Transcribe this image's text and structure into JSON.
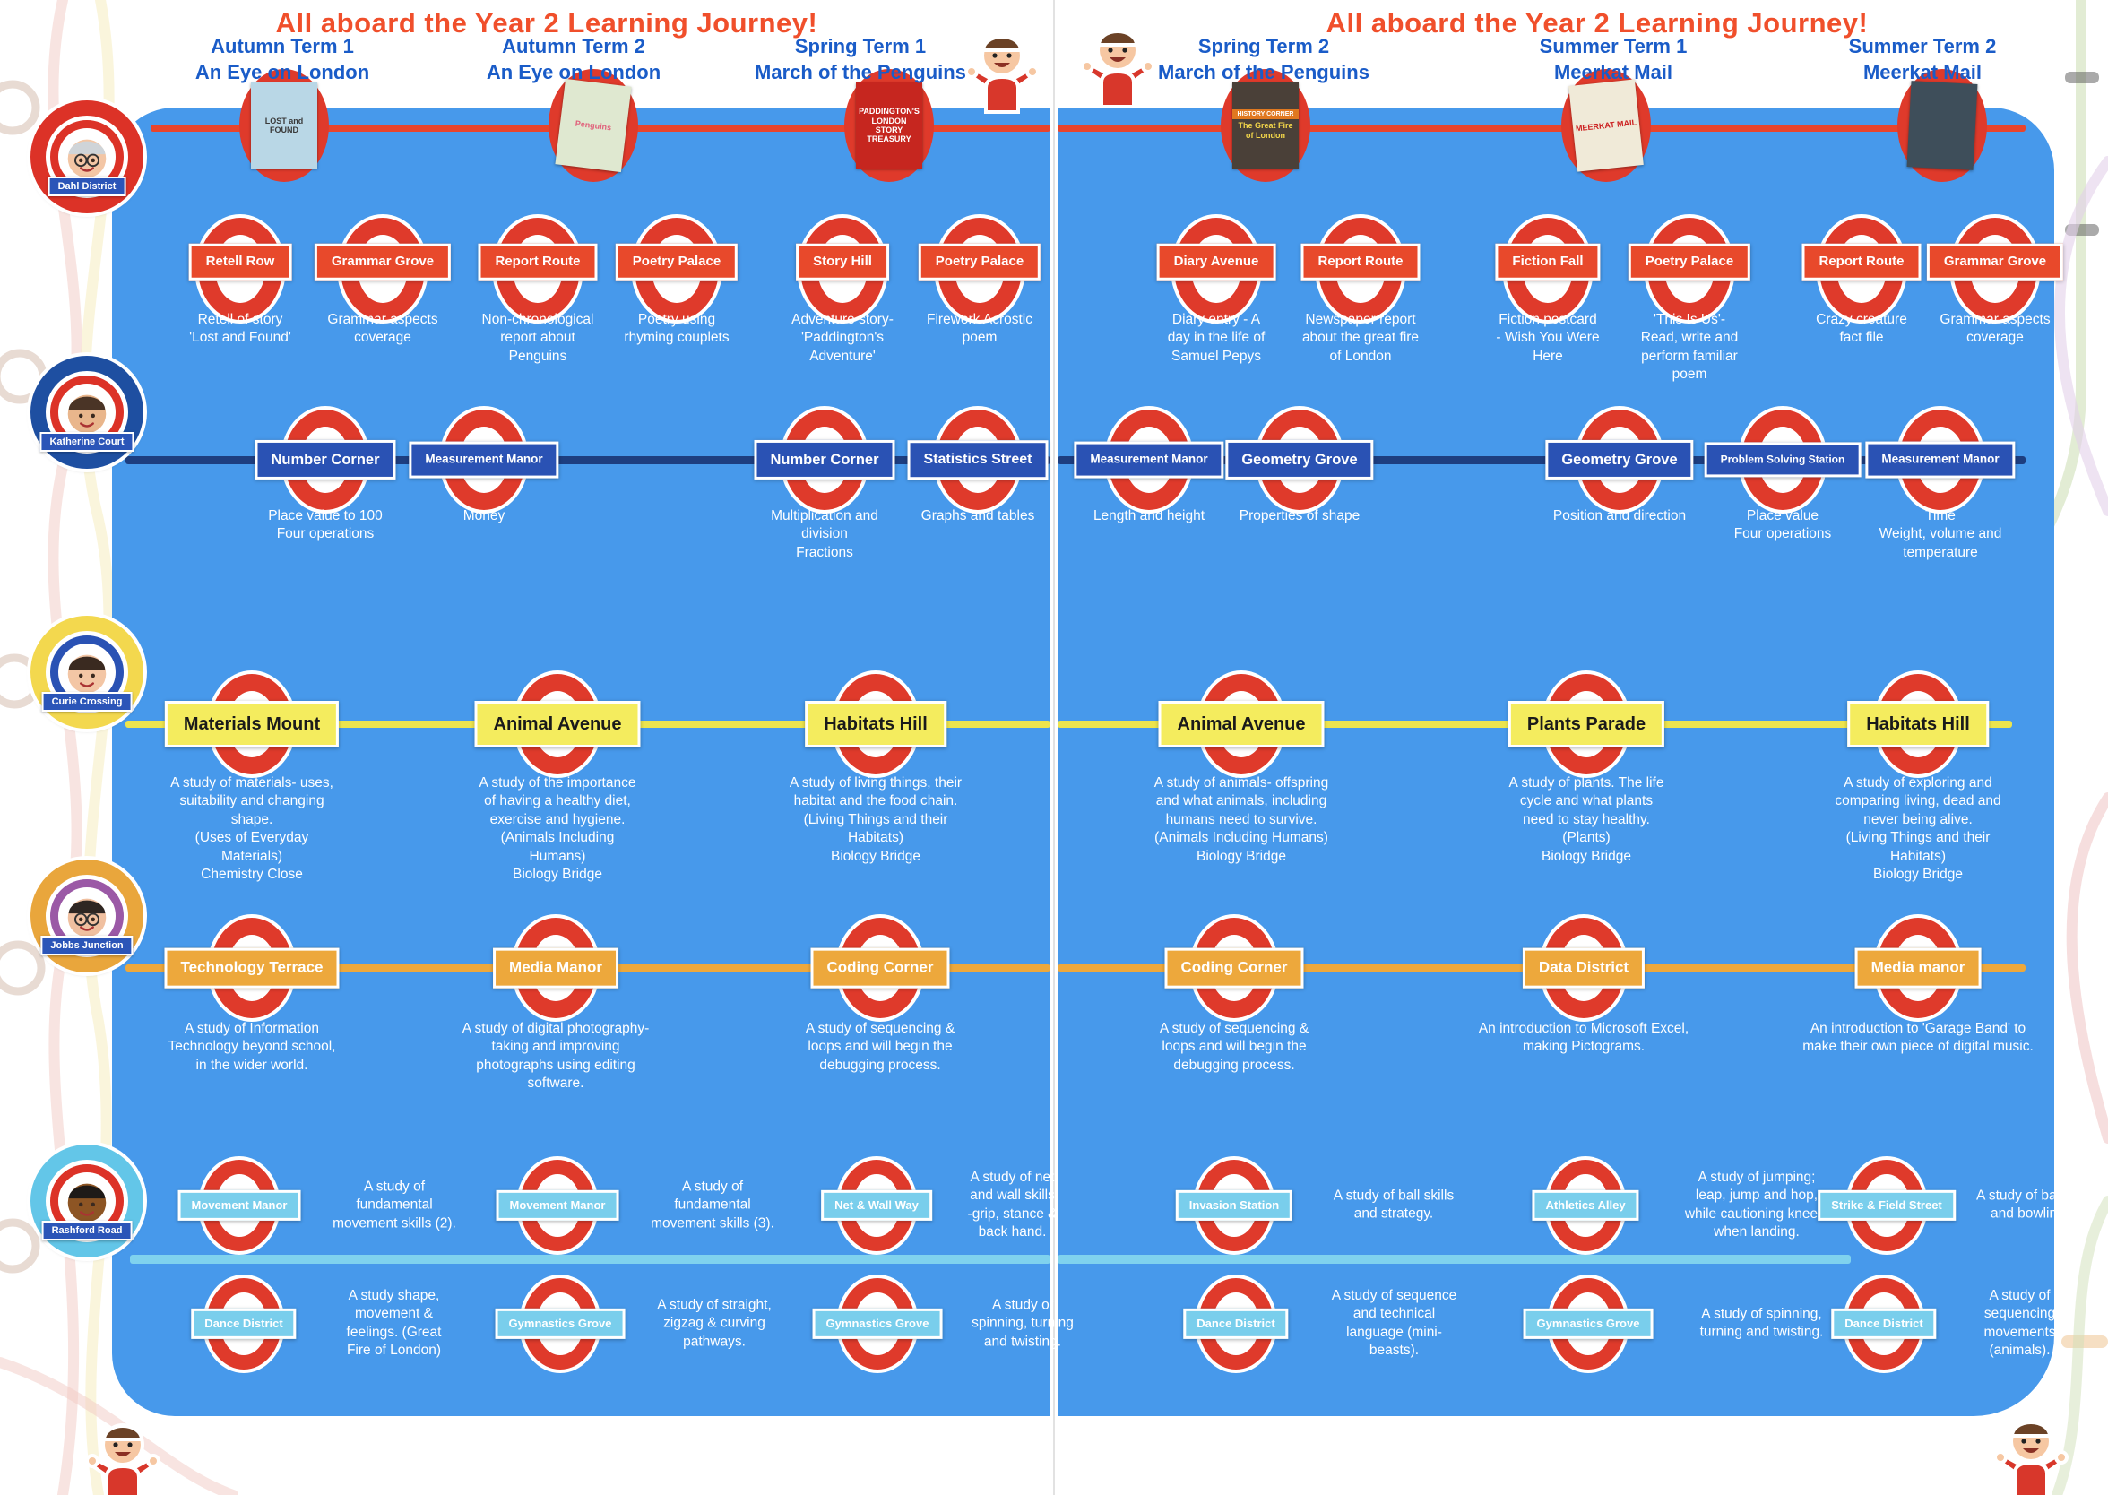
{
  "title": "All aboard the Year 2 Learning Journey!",
  "columns": [
    {
      "term": "Autumn Term 1",
      "topic": "An Eye on London"
    },
    {
      "term": "Autumn Term 2",
      "topic": "An Eye on London"
    },
    {
      "term": "Spring Term 1",
      "topic": "March of the Penguins"
    },
    {
      "term": "Spring Term 2",
      "topic": "March of the Penguins"
    },
    {
      "term": "Summer Term 1",
      "topic": "Meerkat Mail"
    },
    {
      "term": "Summer Term 2",
      "topic": "Meerkat Mail"
    }
  ],
  "sidebar_lines": [
    {
      "name": "Dahl District",
      "color": "#DC3227"
    },
    {
      "name": "Katherine Court",
      "color": "#1E4FA1"
    },
    {
      "name": "Curie Crossing",
      "color": "#F3D84E"
    },
    {
      "name": "Jobbs Junction",
      "color": "#E9A63C"
    },
    {
      "name": "Rashford Road",
      "color": "#63C6E8"
    }
  ],
  "lines": {
    "english": {
      "color": "#E8442C",
      "stations": [
        {
          "name": "Retell Row",
          "desc": "Retell of story\n'Lost and Found'"
        },
        {
          "name": "Grammar Grove",
          "desc": "Grammar aspects\ncoverage"
        },
        {
          "name": "Report Route",
          "desc": "Non-chronological\nreport about\nPenguins"
        },
        {
          "name": "Poetry Palace",
          "desc": "Poetry using\nrhyming couplets"
        },
        {
          "name": "Story Hill",
          "desc": "Adventure story-\n'Paddington's\nAdventure'"
        },
        {
          "name": "Poetry Palace",
          "desc": "Firework Acrostic\npoem"
        },
        {
          "name": "Diary Avenue",
          "desc": "Diary entry - A\nday in the life of\nSamuel Pepys"
        },
        {
          "name": "Report Route",
          "desc": "Newspaper report\nabout the great fire\nof London"
        },
        {
          "name": "Fiction Fall",
          "desc": "Fiction postcard\n- Wish You Were\nHere"
        },
        {
          "name": "Poetry Palace",
          "desc": "'This Is Us'-\nRead, write and\nperform familiar\npoem"
        },
        {
          "name": "Report Route",
          "desc": "Crazy creature\nfact file"
        },
        {
          "name": "Grammar Grove",
          "desc": "Grammar aspects\ncoverage"
        }
      ]
    },
    "maths": {
      "color": "#1D3E80",
      "station_color": "#2A52B4",
      "stations": [
        {
          "name": "Number Corner",
          "desc": "Place value to 100\nFour operations"
        },
        {
          "name": "Measurement Manor",
          "desc": "Money"
        },
        {
          "name": "Number Corner",
          "desc": "Multiplication and\ndivision\nFractions"
        },
        {
          "name": "Statistics Street",
          "desc": "Graphs and tables"
        },
        {
          "name": "Measurement Manor",
          "desc": "Length and height"
        },
        {
          "name": "Geometry Grove",
          "desc": "Properties of shape"
        },
        {
          "name": "Geometry Grove",
          "desc": "Position and direction"
        },
        {
          "name": "Problem Solving Station",
          "desc": "Place value\nFour operations"
        },
        {
          "name": "Measurement Manor",
          "desc": "Time\nWeight, volume and\ntemperature"
        }
      ]
    },
    "science": {
      "color": "#EDE44D",
      "stations": [
        {
          "name": "Materials Mount",
          "desc": "A study of materials- uses,\nsuitability and changing\nshape.\n(Uses of Everyday\nMaterials)\nChemistry Close"
        },
        {
          "name": "Animal Avenue",
          "desc": "A study of the importance\nof having a healthy diet,\nexercise and hygiene.\n(Animals Including\nHumans)\nBiology Bridge"
        },
        {
          "name": "Habitats Hill",
          "desc": "A study of living things, their\nhabitat and the food chain.\n(Living Things and their\nHabitats)\nBiology Bridge"
        },
        {
          "name": "Animal Avenue",
          "desc": "A study of animals- offspring\nand what animals, including\nhumans need to survive.\n(Animals Including Humans)\nBiology Bridge"
        },
        {
          "name": "Plants Parade",
          "desc": "A study of plants. The life\ncycle and what plants\nneed to stay healthy.\n(Plants)\nBiology Bridge"
        },
        {
          "name": "Habitats Hill",
          "desc": "A study of exploring and\ncomparing living, dead and\nnever being alive.\n(Living Things and their\nHabitats)\nBiology Bridge"
        }
      ]
    },
    "computing": {
      "color": "#EDA83C",
      "stations": [
        {
          "name": "Technology Terrace",
          "desc": "A study of Information\nTechnology beyond school,\nin the wider world."
        },
        {
          "name": "Media Manor",
          "desc": "A study of digital photography-\ntaking and improving\nphotographs using editing\nsoftware."
        },
        {
          "name": "Coding Corner",
          "desc": "A study of sequencing &\nloops and will begin the\ndebugging process."
        },
        {
          "name": "Coding Corner",
          "desc": "A study of sequencing &\nloops and will begin the\ndebugging process."
        },
        {
          "name": "Data District",
          "desc": "An introduction to Microsoft Excel,\nmaking Pictograms."
        },
        {
          "name": "Media manor",
          "desc": "An introduction to 'Garage Band' to\nmake their own piece of digital music."
        }
      ]
    },
    "pe": {
      "color": "#7FD2EE",
      "stations": [
        {
          "name": "Movement Manor",
          "desc": "A study of\nfundamental\nmovement skills (2)."
        },
        {
          "name": "Movement Manor",
          "desc": "A study of\nfundamental\nmovement skills (3)."
        },
        {
          "name": "Net & Wall Way",
          "desc": "A study of net\nand wall skills\n-grip, stance &\nback hand."
        },
        {
          "name": "Invasion Station",
          "desc": "A study of ball skills\nand strategy."
        },
        {
          "name": "Athletics Alley",
          "desc": "A study of  jumping;\nleap, jump and hop,\nwhile cautioning knees,\nwhen landing."
        },
        {
          "name": "Strike & Field Street",
          "desc": "A study of batting\nand bowling."
        },
        {
          "name": "Dance District",
          "desc": "A study shape,\nmovement &\nfeelings. (Great\nFire of London)"
        },
        {
          "name": "Gymnastics Grove",
          "desc": "A study of straight,\nzigzag & curving\npathways."
        },
        {
          "name": "Gymnastics Grove",
          "desc": "A study of\nspinning, turning\nand twisting."
        },
        {
          "name": "Dance District",
          "desc": "A study of sequence\nand technical\nlanguage (mini-\nbeasts)."
        },
        {
          "name": "Gymnastics Grove",
          "desc": "A study of spinning,\nturning and twisting."
        },
        {
          "name": "Dance District",
          "desc": "A study of\nsequencing\nmovements\n(animals)."
        }
      ]
    }
  },
  "books": [
    {
      "title": "LOST and FOUND"
    },
    {
      "title": "Penguins"
    },
    {
      "title": "PADDINGTON'S LONDON STORY TREASURY"
    },
    {
      "band": "HISTORY CORNER",
      "title": "The Great Fire of London"
    },
    {
      "title": "MEERKAT MAIL"
    },
    {
      "title": ""
    }
  ]
}
